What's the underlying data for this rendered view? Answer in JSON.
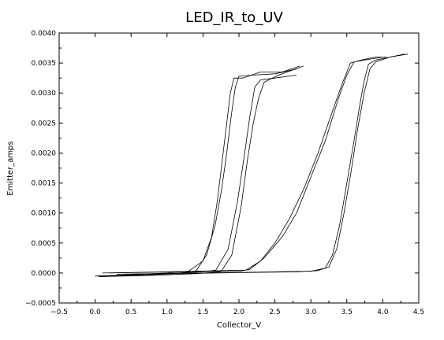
{
  "chart_data": {
    "type": "line",
    "title": "LED_IR_to_UV",
    "xlabel": "Collector_V",
    "ylabel": "Emitter_amps",
    "xlim": [
      -0.5,
      4.5
    ],
    "ylim": [
      -0.0005,
      0.004
    ],
    "grid": false,
    "x_ticks": [
      "−0.5",
      "0.0",
      "0.5",
      "1.0",
      "1.5",
      "2.0",
      "2.5",
      "3.0",
      "3.5",
      "4.0",
      "4.5"
    ],
    "y_ticks": [
      "−0.0005",
      "0.0000",
      "0.0005",
      "0.0010",
      "0.0015",
      "0.0020",
      "0.0025",
      "0.0030",
      "0.0035",
      "0.0040"
    ],
    "series": [
      {
        "x": [
          0.0,
          0.5,
          1.0,
          1.3,
          1.5,
          1.62,
          1.7,
          1.76,
          1.82,
          1.88,
          1.93,
          2.05,
          2.3,
          2.6,
          2.85
        ],
        "y": [
          -5e-05,
          -3e-05,
          0.0,
          3e-05,
          0.0002,
          0.0006,
          0.0012,
          0.0018,
          0.0024,
          0.003,
          0.00325,
          0.00325,
          0.00335,
          0.00335,
          0.00345
        ]
      },
      {
        "x": [
          0.05,
          0.6,
          1.1,
          1.4,
          1.55,
          1.67,
          1.76,
          1.83,
          1.89,
          1.95,
          2.0,
          2.2,
          2.5,
          2.8
        ],
        "y": [
          -6e-05,
          -4e-05,
          -1e-05,
          3e-05,
          0.0003,
          0.0008,
          0.0014,
          0.002,
          0.0026,
          0.0031,
          0.00328,
          0.0033,
          0.00332,
          0.0034
        ]
      },
      {
        "x": [
          0.0,
          0.7,
          1.2,
          1.5,
          1.68,
          1.85,
          1.98,
          2.08,
          2.15,
          2.22,
          2.3,
          2.5,
          2.8
        ],
        "y": [
          -5e-05,
          -3e-05,
          0.0,
          2e-05,
          5e-05,
          0.0004,
          0.0012,
          0.002,
          0.0026,
          0.0031,
          0.00322,
          0.00325,
          0.0033
        ]
      },
      {
        "x": [
          0.05,
          0.8,
          1.4,
          1.75,
          1.9,
          2.03,
          2.12,
          2.2,
          2.27,
          2.35,
          2.55,
          2.9
        ],
        "y": [
          -6e-05,
          -4e-05,
          -1e-05,
          2e-05,
          0.0003,
          0.0011,
          0.0019,
          0.0025,
          0.0029,
          0.00318,
          0.0033,
          0.00345
        ]
      },
      {
        "x": [
          0.1,
          1.0,
          1.8,
          2.1,
          2.3,
          2.5,
          2.7,
          2.9,
          3.1,
          3.3,
          3.45,
          3.55,
          3.7,
          3.9,
          4.05
        ],
        "y": [
          0.0,
          2e-05,
          4e-05,
          5e-05,
          0.0002,
          0.0005,
          0.0009,
          0.0014,
          0.002,
          0.0027,
          0.0032,
          0.0035,
          0.00355,
          0.0036,
          0.0036
        ]
      },
      {
        "x": [
          0.2,
          1.2,
          2.0,
          2.15,
          2.35,
          2.6,
          2.8,
          3.0,
          3.2,
          3.38,
          3.5,
          3.6,
          3.8,
          4.0
        ],
        "y": [
          0.0,
          2e-05,
          3e-05,
          6e-05,
          0.00025,
          0.0006,
          0.001,
          0.0016,
          0.0022,
          0.0029,
          0.0033,
          0.00352,
          0.00356,
          0.0036
        ]
      },
      {
        "x": [
          0.3,
          1.5,
          2.5,
          3.0,
          3.2,
          3.3,
          3.4,
          3.5,
          3.6,
          3.68,
          3.74,
          3.8,
          3.9,
          4.1,
          4.3
        ],
        "y": [
          -2e-05,
          0.0,
          2e-05,
          3e-05,
          8e-05,
          0.0003,
          0.0008,
          0.0015,
          0.0022,
          0.0028,
          0.0032,
          0.00348,
          0.00355,
          0.0036,
          0.00365
        ]
      },
      {
        "x": [
          0.4,
          1.7,
          2.8,
          3.1,
          3.25,
          3.36,
          3.46,
          3.56,
          3.65,
          3.74,
          3.82,
          3.9,
          4.1,
          4.35
        ],
        "y": [
          -2e-05,
          0.0,
          2e-05,
          4e-05,
          0.0001,
          0.0004,
          0.001,
          0.0017,
          0.0024,
          0.003,
          0.0034,
          0.00352,
          0.0036,
          0.00365
        ]
      }
    ]
  }
}
